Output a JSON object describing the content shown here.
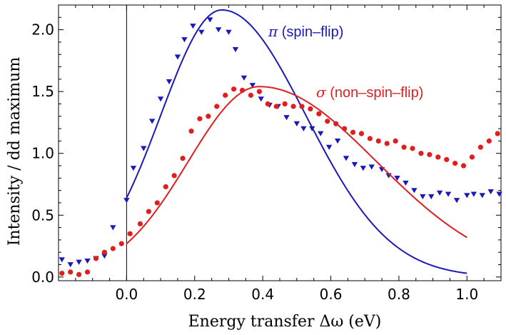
{
  "chart_data": {
    "type": "scatter",
    "title": "",
    "xlabel": "Energy transfer Δω (eV)",
    "ylabel": "Intensity / dd maximum",
    "xlim": [
      -0.2,
      1.1
    ],
    "ylim": [
      -0.03,
      2.2
    ],
    "xticks": [
      0.0,
      0.2,
      0.4,
      0.6,
      0.8,
      1.0
    ],
    "xtick_labels": [
      "0.0",
      "0.2",
      "0.4",
      "0.6",
      "0.8",
      "1.0"
    ],
    "yticks": [
      0.0,
      0.5,
      1.0,
      1.5,
      2.0
    ],
    "ytick_labels": [
      "0.0",
      "0.5",
      "1.0",
      "1.5",
      "2.0"
    ],
    "vertical_line_x": 0.0,
    "series": [
      {
        "name": "π (spin–flip)",
        "label_symbol": "π",
        "label_text": " (spin–flip)",
        "color": "#1a1ab8",
        "marker": "triangle-down",
        "x": [
          -0.19,
          -0.165,
          -0.14,
          -0.115,
          -0.09,
          -0.065,
          -0.04,
          0.0,
          0.02,
          0.05,
          0.075,
          0.1,
          0.125,
          0.15,
          0.17,
          0.195,
          0.22,
          0.245,
          0.27,
          0.3,
          0.32,
          0.345,
          0.37,
          0.395,
          0.42,
          0.445,
          0.47,
          0.5,
          0.52,
          0.545,
          0.57,
          0.595,
          0.62,
          0.645,
          0.67,
          0.695,
          0.72,
          0.75,
          0.77,
          0.795,
          0.82,
          0.845,
          0.87,
          0.895,
          0.92,
          0.945,
          0.97,
          1.0,
          1.02,
          1.045,
          1.07,
          1.095
        ],
        "y": [
          0.14,
          0.1,
          0.12,
          0.13,
          0.15,
          0.17,
          0.4,
          0.62,
          0.88,
          1.04,
          1.26,
          1.44,
          1.58,
          1.78,
          1.92,
          2.03,
          1.98,
          2.08,
          2.0,
          1.98,
          1.84,
          1.61,
          1.55,
          1.44,
          1.39,
          1.38,
          1.29,
          1.24,
          1.2,
          1.2,
          1.16,
          1.05,
          1.1,
          0.96,
          0.91,
          0.88,
          0.89,
          0.87,
          0.82,
          0.8,
          0.76,
          0.7,
          0.65,
          0.65,
          0.68,
          0.67,
          0.62,
          0.66,
          0.67,
          0.66,
          0.69,
          0.67
        ],
        "fit_peak_x": 0.28,
        "fit_peak_y": 2.16,
        "fit_start_y": 0.64,
        "fit_end_y": 0.03
      },
      {
        "name": "σ (non–spin–flip)",
        "label_symbol": "σ",
        "label_text": " (non–spin–flip)",
        "color": "#e01e1e",
        "marker": "circle",
        "x": [
          -0.19,
          -0.165,
          -0.14,
          -0.115,
          -0.09,
          -0.065,
          -0.04,
          -0.015,
          0.01,
          0.04,
          0.065,
          0.09,
          0.115,
          0.14,
          0.165,
          0.19,
          0.215,
          0.24,
          0.265,
          0.29,
          0.315,
          0.34,
          0.365,
          0.39,
          0.415,
          0.44,
          0.465,
          0.49,
          0.515,
          0.54,
          0.565,
          0.59,
          0.615,
          0.64,
          0.665,
          0.69,
          0.715,
          0.74,
          0.765,
          0.79,
          0.815,
          0.84,
          0.865,
          0.89,
          0.915,
          0.94,
          0.965,
          0.99,
          1.015,
          1.04,
          1.065,
          1.09
        ],
        "y": [
          0.03,
          0.04,
          0.02,
          0.04,
          0.15,
          0.2,
          0.23,
          0.27,
          0.35,
          0.43,
          0.53,
          0.6,
          0.73,
          0.82,
          0.96,
          1.18,
          1.28,
          1.3,
          1.38,
          1.47,
          1.52,
          1.51,
          1.47,
          1.5,
          1.4,
          1.38,
          1.4,
          1.38,
          1.38,
          1.36,
          1.32,
          1.26,
          1.24,
          1.2,
          1.17,
          1.16,
          1.12,
          1.1,
          1.08,
          1.1,
          1.05,
          1.04,
          1.0,
          0.99,
          0.97,
          0.95,
          0.92,
          0.9,
          0.97,
          1.05,
          1.1,
          1.16
        ],
        "fit_peak_x": 0.39,
        "fit_peak_y": 1.54,
        "fit_start_y": 0.27,
        "fit_end_y": 0.32
      }
    ]
  }
}
